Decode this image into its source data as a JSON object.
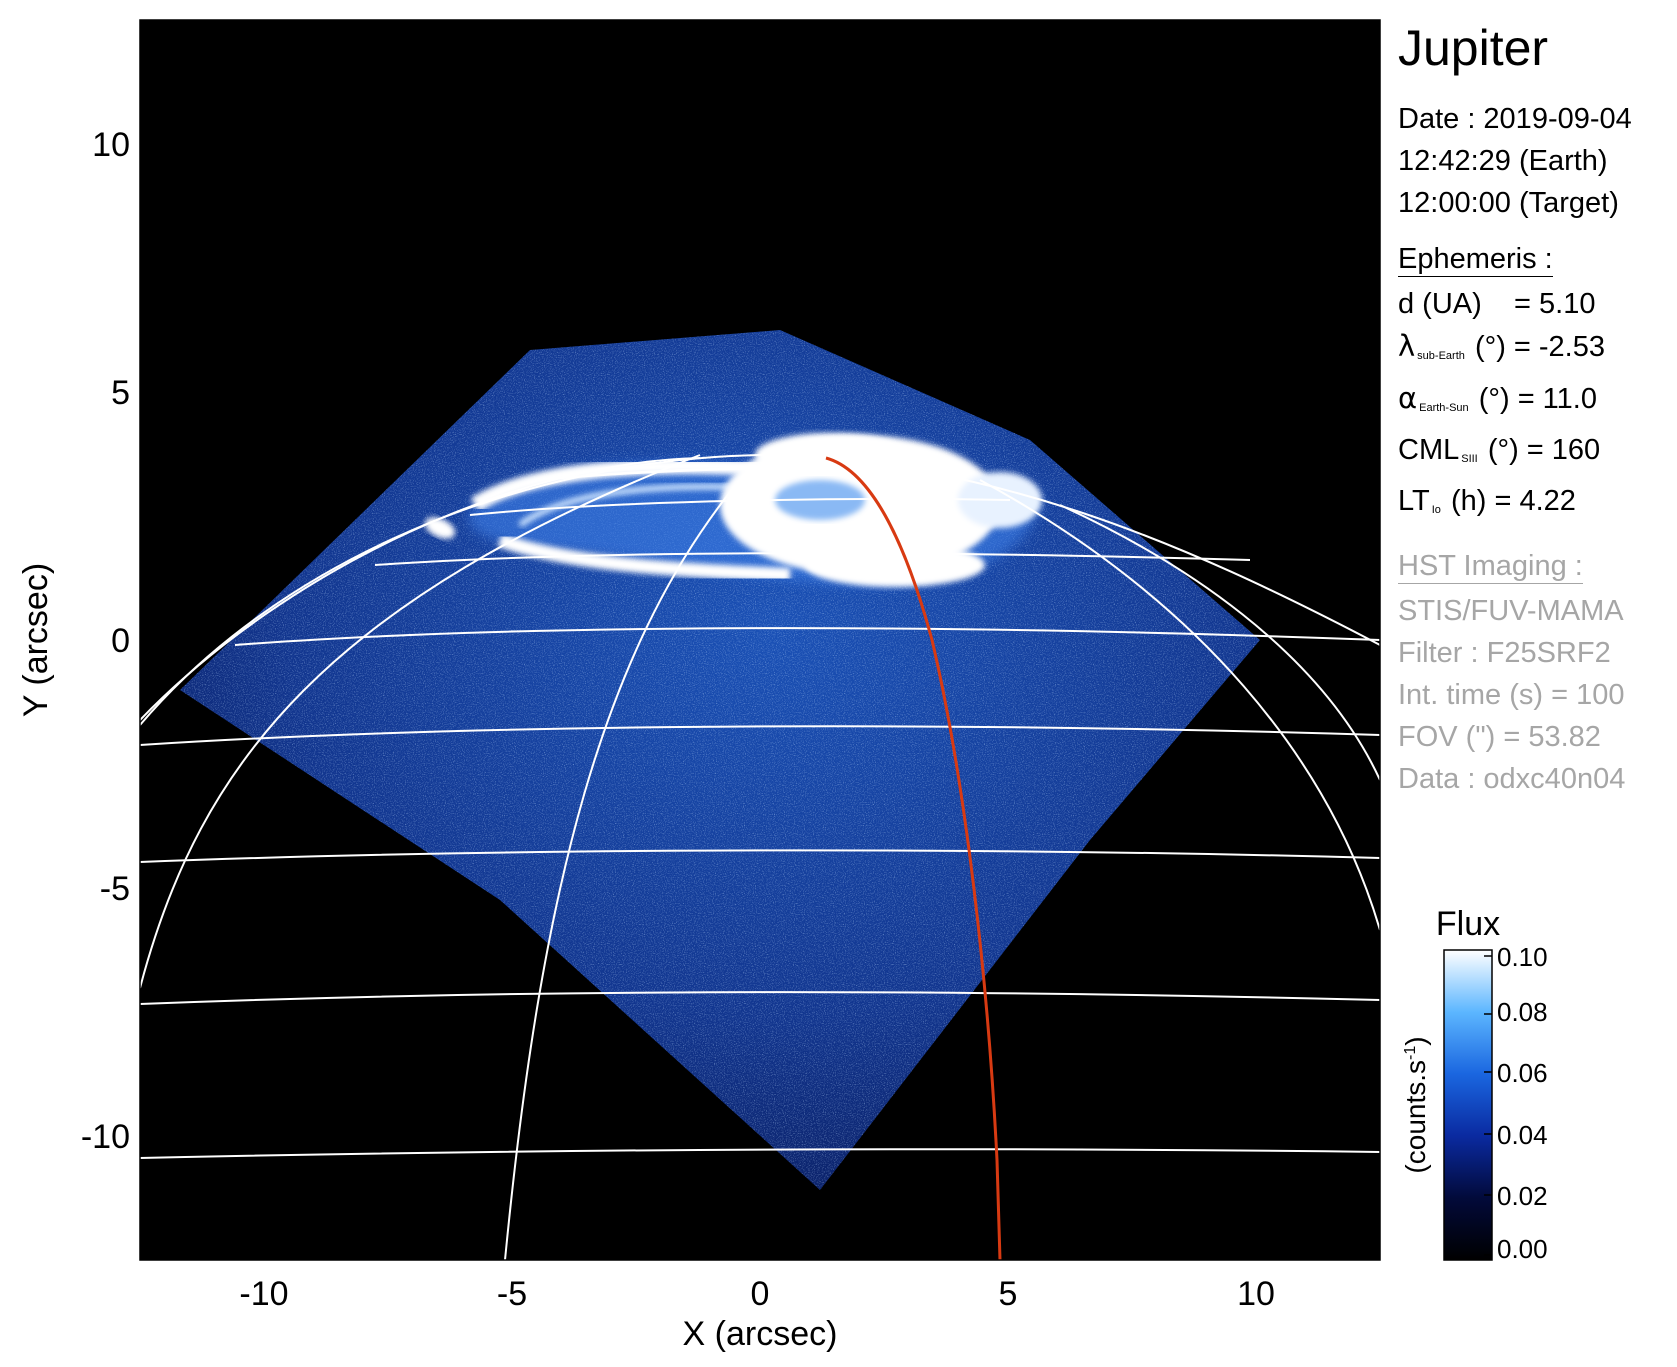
{
  "planet": "Jupiter",
  "date": {
    "line1": "Date : 2019-09-04",
    "line2": "12:42:29 (Earth)",
    "line3": "12:00:00 (Target)"
  },
  "ephemeris": {
    "title": "Ephemeris :",
    "distance": "d (UA)    = 5.10",
    "lambda_symbol": "λ",
    "lambda_sub": "sub-Earth",
    "lambda_rest": "(°) = -2.53",
    "alpha_symbol": "α",
    "alpha_sub": "Earth-Sun",
    "alpha_rest": "(°) = 11.0",
    "cml_label": "CML",
    "cml_sub": "SIII",
    "cml_rest": "(°) = 160",
    "lt_label": "LT",
    "lt_sub": "Io",
    "lt_rest": "(h) = 4.22"
  },
  "imaging": {
    "title": "HST Imaging :",
    "instrument": "STIS/FUV-MAMA",
    "filter": "Filter : F25SRF2",
    "int_time": "Int. time (s) = 100",
    "fov": "FOV (\") = 53.82",
    "data": "Data : odxc40n04"
  },
  "axes": {
    "xlabel": "X (arcsec)",
    "ylabel": "Y (arcsec)",
    "x_ticks": [
      -10,
      -5,
      0,
      5,
      10
    ],
    "y_ticks": [
      10,
      5,
      0,
      -5,
      -10
    ],
    "xlim": [
      -12.5,
      12.5
    ],
    "ylim": [
      -12.5,
      12.5
    ]
  },
  "colorbar": {
    "title": "Flux",
    "label": "(counts.s",
    "label_sup": "-1",
    "label_end": ")",
    "ticks": [
      "0.10",
      "0.08",
      "0.06",
      "0.04",
      "0.02",
      "0.00"
    ],
    "range": [
      0.0,
      0.1
    ]
  },
  "colors": {
    "background": "#000000",
    "emission_low": "#0a1a6e",
    "emission_mid": "#1e6fe0",
    "emission_high": "#ffffff",
    "grid": "#ffffff",
    "meridian": "#d83a12",
    "gray_text": "#a6a6a6"
  }
}
